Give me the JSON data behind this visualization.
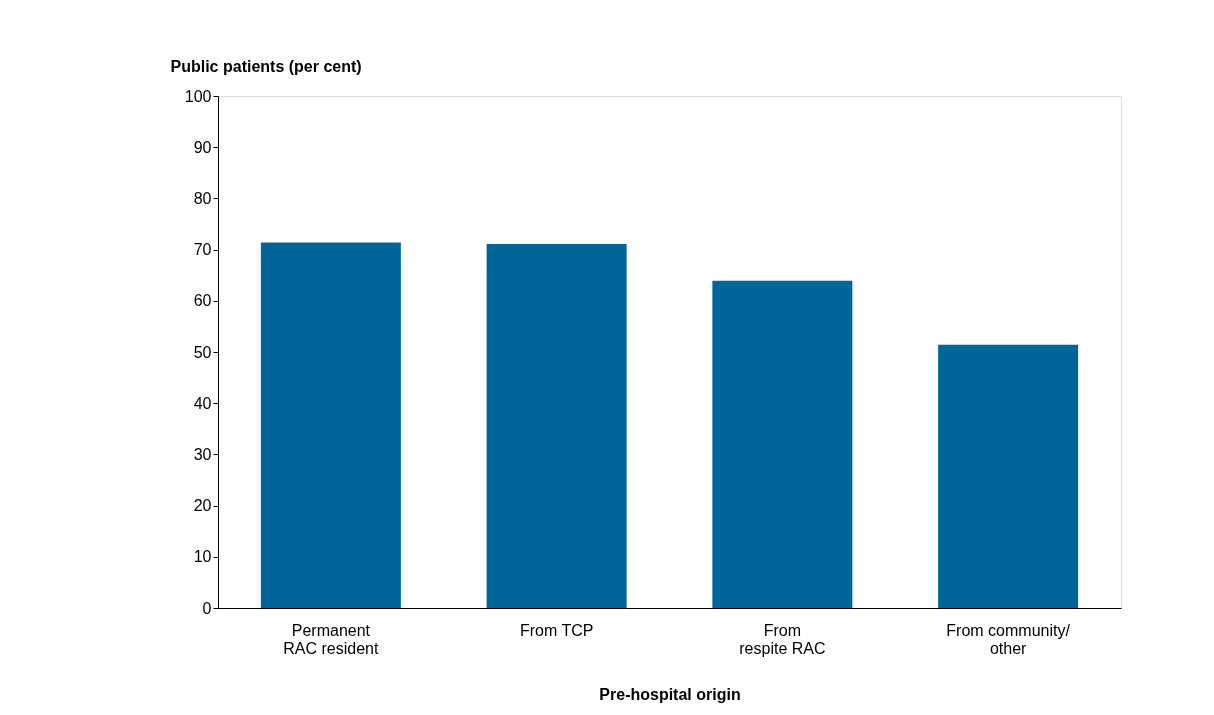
{
  "chart_data": {
    "type": "bar",
    "xlabel": "Pre-hospital origin",
    "ylabel": "Public patients (per cent)",
    "categories": [
      "Permanent\nRAC resident",
      "From TCP",
      "From\nrespite RAC",
      "From community/\nother"
    ],
    "values": [
      71.4,
      71.1,
      63.9,
      51.4
    ],
    "color": "#006699",
    "ylim": [
      0,
      100
    ],
    "yticks": [
      0,
      10,
      20,
      30,
      40,
      50,
      60,
      70,
      80,
      90,
      100
    ],
    "grid": false
  }
}
